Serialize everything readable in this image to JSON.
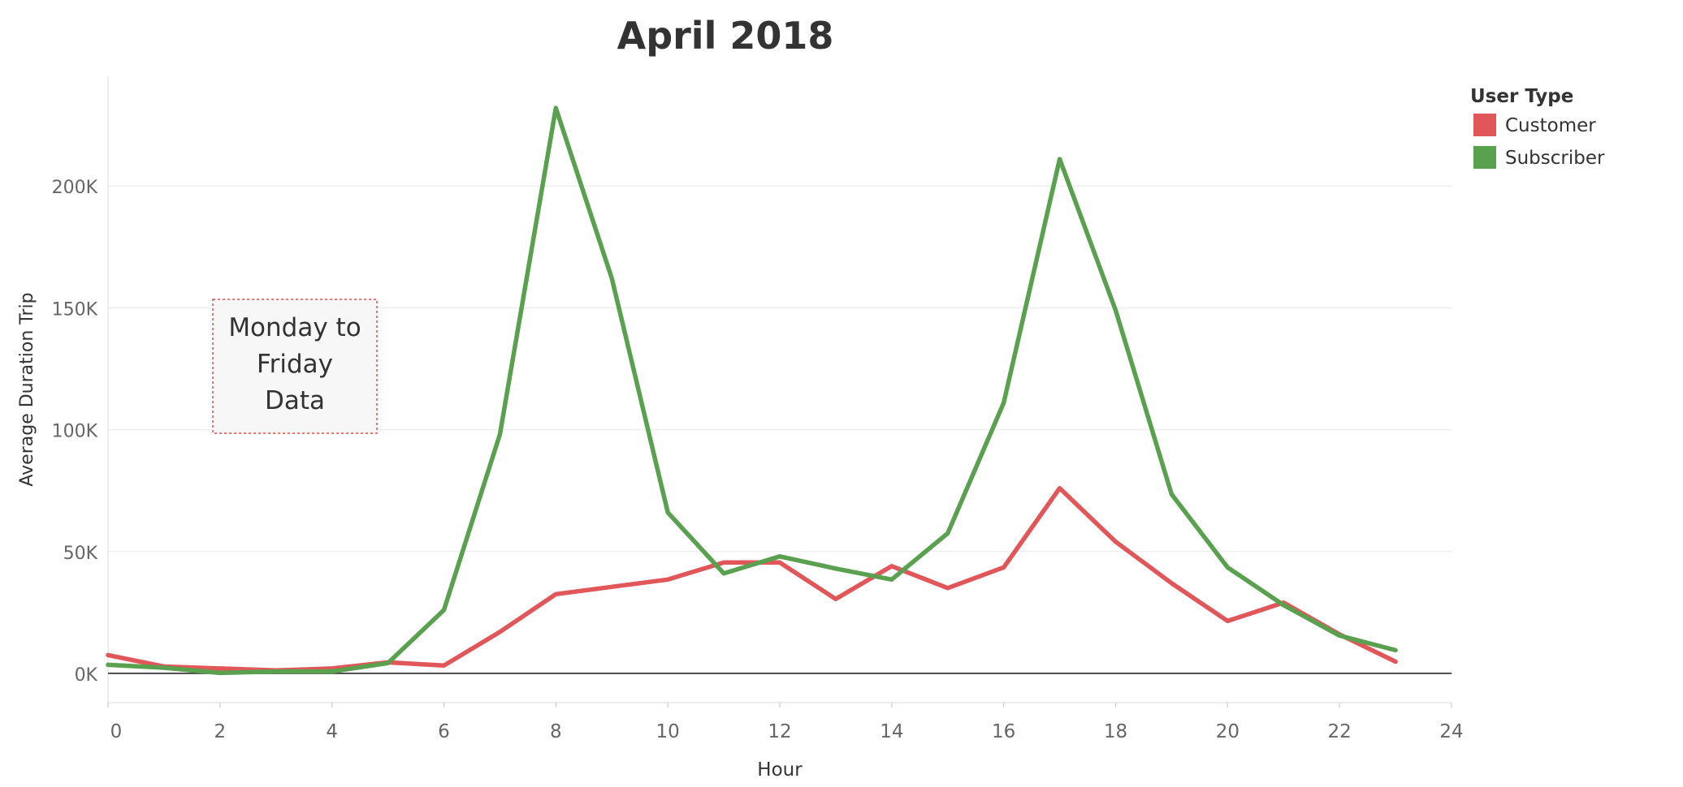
{
  "chart_data": {
    "type": "line",
    "title": "April 2018",
    "xlabel": "Hour",
    "ylabel": "Average Duration Trip",
    "xlim": [
      0,
      24
    ],
    "ylim": [
      -12000,
      245000
    ],
    "x_ticks": [
      0,
      2,
      4,
      6,
      8,
      10,
      12,
      14,
      16,
      18,
      20,
      22,
      24
    ],
    "x_tick_labels": [
      "0",
      "2",
      "4",
      "6",
      "8",
      "10",
      "12",
      "14",
      "16",
      "18",
      "20",
      "22",
      "24"
    ],
    "y_ticks": [
      0,
      50000,
      100000,
      150000,
      200000
    ],
    "y_tick_labels": [
      "0K",
      "50K",
      "100K",
      "150K",
      "200K"
    ],
    "grid": true,
    "legend_placement": "top-right",
    "legend_title": "User Type",
    "x": [
      0,
      1,
      2,
      3,
      4,
      5,
      6,
      7,
      8,
      9,
      10,
      11,
      12,
      13,
      14,
      15,
      16,
      17,
      18,
      19,
      20,
      21,
      22,
      23
    ],
    "series": [
      {
        "name": "Customer",
        "color": "#e15759",
        "values": [
          7500,
          2800,
          2000,
          1200,
          2000,
          4500,
          3200,
          17000,
          32500,
          35500,
          38500,
          45500,
          45500,
          30500,
          44000,
          35000,
          43500,
          76000,
          54000,
          37000,
          21500,
          29000,
          16000,
          4800
        ]
      },
      {
        "name": "Subscriber",
        "color": "#59a14f",
        "values": [
          3500,
          2300,
          200,
          800,
          800,
          4200,
          26000,
          98000,
          232000,
          162000,
          66000,
          41000,
          48000,
          43000,
          38500,
          57500,
          111000,
          211000,
          149000,
          73500,
          43500,
          28000,
          15500,
          9500
        ]
      }
    ],
    "annotation": {
      "lines": [
        "Monday to",
        "Friday",
        "Data"
      ]
    }
  }
}
